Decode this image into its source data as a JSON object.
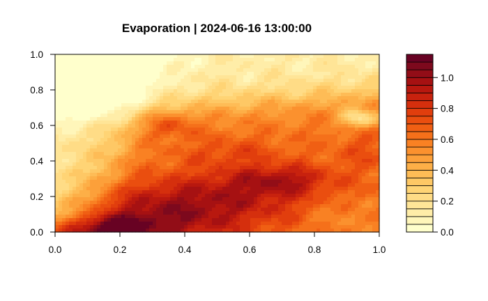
{
  "chart_data": {
    "type": "heatmap",
    "title": "Evaporation | 2024-06-16 13:00:00",
    "xlabel": "",
    "ylabel": "",
    "xlim": [
      0,
      1
    ],
    "ylim": [
      0,
      1
    ],
    "x_ticks": [
      "0.0",
      "0.2",
      "0.4",
      "0.6",
      "0.8",
      "1.0"
    ],
    "y_ticks": [
      "0.0",
      "0.2",
      "0.4",
      "0.6",
      "0.8",
      "1.0"
    ],
    "x_tick_values": [
      0,
      0.2,
      0.4,
      0.6,
      0.8,
      1.0
    ],
    "y_tick_values": [
      0,
      0.2,
      0.4,
      0.6,
      0.8,
      1.0
    ],
    "grid": false,
    "colorbar": {
      "range": [
        0,
        1.15
      ],
      "levels": 23,
      "ticks": [
        "0.0",
        "0.2",
        "0.4",
        "0.6",
        "0.8",
        "1.0"
      ],
      "tick_values": [
        0,
        0.2,
        0.4,
        0.6,
        0.8,
        1.0
      ],
      "colors": [
        "#FFFFCC",
        "#FFF6BA",
        "#FFEDA8",
        "#FFE597",
        "#FFDC86",
        "#FFD475",
        "#FEC865",
        "#FEBC56",
        "#FDAF47",
        "#FCA03A",
        "#FB912E",
        "#F98123",
        "#F5701A",
        "#F05F13",
        "#EA4E0F",
        "#E13E0D",
        "#D52F0D",
        "#C8220E",
        "#B8180F",
        "#A61112",
        "#920D17",
        "#7D091D",
        "#680223"
      ]
    },
    "field_description": "2D evaporation field on a 0-1 grid; low values (pale yellow) across the upper band y>0.75 and in the left region x<0.15, plus a pale patch near x=0.9-1.0, y=0.6-0.7; medium orange values in the middle; high values (dark red to purple) in the lower band, peaking near x=0.15-0.35, y=0.0-0.15."
  }
}
